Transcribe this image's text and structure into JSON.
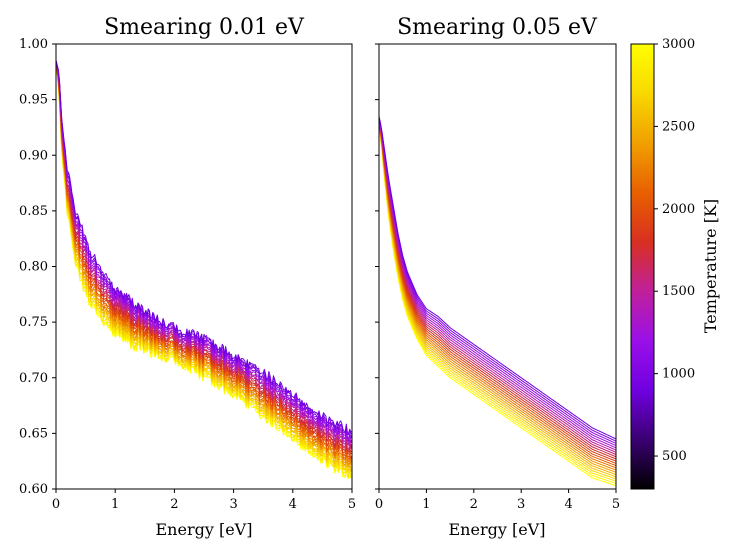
{
  "chart_data": [
    {
      "type": "line",
      "title": "Smearing 0.01 eV",
      "xlabel": "Energy [eV]",
      "ylabel": "",
      "xlim": [
        0,
        5
      ],
      "ylim": [
        0.6,
        1.0
      ],
      "xticks": [
        "0",
        "1",
        "2",
        "3",
        "4",
        "5"
      ],
      "yticks": [
        "0.60",
        "0.65",
        "0.70",
        "0.75",
        "0.80",
        "0.85",
        "0.90",
        "0.95",
        "1.00"
      ],
      "series_note": "22 curves, temperature 900 K (purple, top) to 3000 K (yellow, bottom); noisy",
      "x": [
        0,
        0.05,
        0.1,
        0.2,
        0.3,
        0.4,
        0.5,
        0.6,
        0.8,
        1.0,
        1.25,
        1.5,
        2.0,
        2.5,
        3.0,
        3.5,
        4.0,
        4.5,
        5.0
      ],
      "series_top": [
        0.985,
        0.975,
        0.93,
        0.885,
        0.855,
        0.84,
        0.825,
        0.81,
        0.795,
        0.78,
        0.77,
        0.76,
        0.745,
        0.735,
        0.72,
        0.705,
        0.685,
        0.665,
        0.652
      ],
      "series_bottom": [
        0.985,
        0.955,
        0.9,
        0.845,
        0.81,
        0.79,
        0.775,
        0.765,
        0.75,
        0.74,
        0.73,
        0.725,
        0.715,
        0.7,
        0.685,
        0.665,
        0.645,
        0.625,
        0.61
      ]
    },
    {
      "type": "line",
      "title": "Smearing 0.05 eV",
      "xlabel": "Energy [eV]",
      "ylabel": "",
      "xlim": [
        0,
        5
      ],
      "ylim": [
        0.6,
        1.0
      ],
      "xticks": [
        "0",
        "1",
        "2",
        "3",
        "4",
        "5"
      ],
      "series_note": "22 curves, temperature 900 K (purple, top) to 3000 K (yellow, bottom); smooth",
      "x": [
        0,
        0.05,
        0.1,
        0.2,
        0.3,
        0.4,
        0.5,
        0.6,
        0.8,
        1.0,
        1.25,
        1.5,
        2.0,
        2.5,
        3.0,
        3.5,
        4.0,
        4.5,
        5.0
      ],
      "series_top": [
        0.935,
        0.925,
        0.91,
        0.88,
        0.855,
        0.83,
        0.81,
        0.795,
        0.775,
        0.762,
        0.755,
        0.745,
        0.73,
        0.715,
        0.7,
        0.685,
        0.67,
        0.655,
        0.645
      ],
      "series_bottom": [
        0.925,
        0.91,
        0.885,
        0.845,
        0.815,
        0.79,
        0.77,
        0.755,
        0.735,
        0.72,
        0.71,
        0.7,
        0.685,
        0.67,
        0.655,
        0.64,
        0.625,
        0.61,
        0.603
      ]
    }
  ],
  "colorbar": {
    "label": "Temperature [K]",
    "range": [
      300,
      3000
    ],
    "ticks": [
      "500",
      "1000",
      "1500",
      "2000",
      "2500",
      "3000"
    ],
    "tick_values": [
      500,
      1000,
      1500,
      2000,
      2500,
      3000
    ],
    "colormap": "gnuplot",
    "stops": [
      "#000000",
      "#3a0072",
      "#7000e0",
      "#9a10e8",
      "#c0209a",
      "#d83020",
      "#e86000",
      "#f0a000",
      "#f8d800",
      "#ffff00"
    ],
    "curve_t_min": 900,
    "curve_t_max": 3000,
    "curve_count": 22
  }
}
